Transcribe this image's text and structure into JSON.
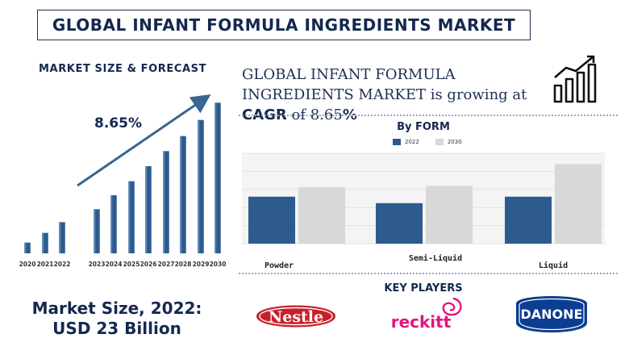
{
  "title": "GLOBAL INFANT FORMULA INGREDIENTS MARKET",
  "left": {
    "heading": "MARKET SIZE & FORECAST",
    "cagr_label": "8.65%",
    "market_size_line1": "Market Size, 2022:",
    "market_size_line2": "USD 23 Billion"
  },
  "headline": {
    "part1": "GLOBAL INFANT FORMULA INGREDIENTS MARKET is growing at ",
    "cagr_word": "CAGR",
    "part2": " of 8.65",
    "pct": "%"
  },
  "form_chart_title": "By FORM",
  "key_players_title": "KEY PLAYERS",
  "logos": {
    "nestle": "Nestle",
    "reckitt": "reckitt",
    "danone": "DANONE"
  },
  "colors": {
    "navy": "#14284f",
    "bar_blue": "#2d5b8d",
    "bar_grey": "#d8d8d8",
    "arrow": "#3a6690"
  },
  "chart_data": [
    {
      "type": "bar",
      "title": "MARKET SIZE & FORECAST",
      "categories": [
        "2020",
        "2021",
        "2022",
        "2023",
        "2024",
        "2025",
        "2026",
        "2027",
        "2028",
        "2029",
        "2030"
      ],
      "values": [
        10,
        19,
        29,
        41,
        54,
        67,
        81,
        95,
        109,
        124,
        140
      ],
      "annotation": "8.65%",
      "ylim": [
        0,
        150
      ]
    },
    {
      "type": "bar",
      "title": "By FORM",
      "categories": [
        "Powder",
        "Semi-Liquid",
        "Liquid"
      ],
      "series": [
        {
          "name": "2022",
          "values": [
            65,
            56,
            65
          ]
        },
        {
          "name": "2030",
          "values": [
            78,
            80,
            110
          ]
        }
      ],
      "ylim": [
        0,
        125
      ],
      "grid": true,
      "legend": "top-center"
    }
  ]
}
